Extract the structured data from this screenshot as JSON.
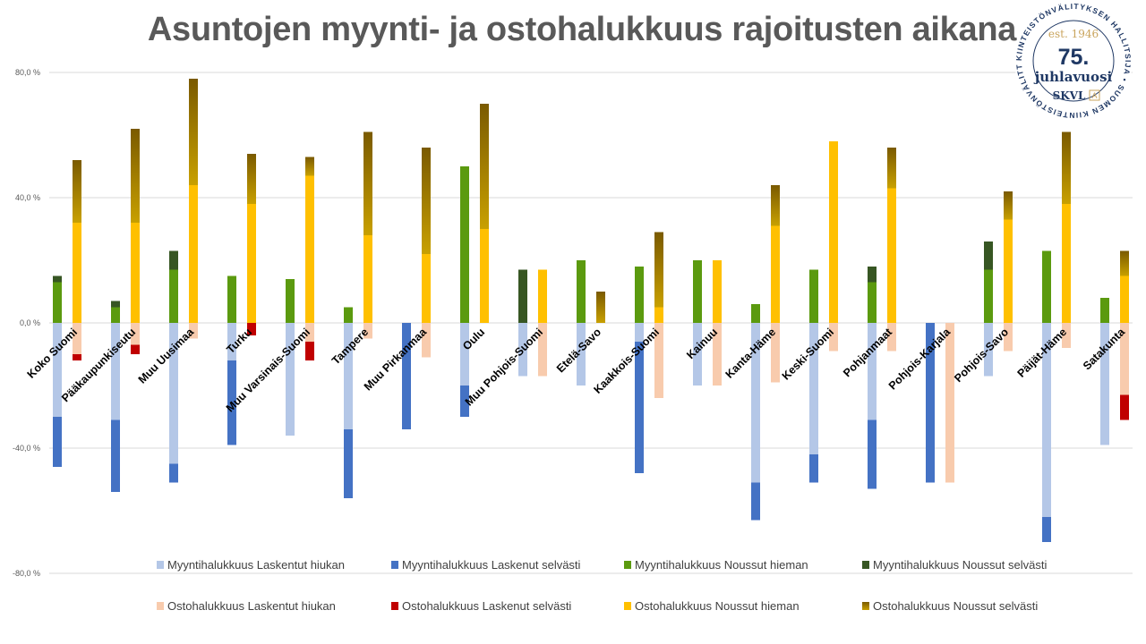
{
  "chart_data": {
    "type": "bar",
    "title": "Asuntojen myynti- ja ostohalukkuus rajoitusten aikana",
    "ylim": [
      -80,
      80
    ],
    "yticks": [
      "80,0 %",
      "40,0 %",
      "0,0 %",
      "-40,0 %",
      "-80,0 %"
    ],
    "grid": true,
    "legend_position": "bottom",
    "categories": [
      "Koko Suomi",
      "Pääkaupunkiseutu",
      "Muu Uusimaa",
      "Turku",
      "Muu Varsinais-Suomi",
      "Tampere",
      "Muu Pirkanmaa",
      "Oulu",
      "Muu Pohjois-Suomi",
      "Etelä-Savo",
      "Kaakkois-Suomi",
      "Kainuu",
      "Kanta-Häme",
      "Keski-Suomi",
      "Pohjanmaat",
      "Pohjois-Karjala",
      "Pohjois-Savo",
      "Päijät-Häme",
      "Satakunta"
    ],
    "series": [
      {
        "name": "Myyntihalukkuus Laskentut hiukan",
        "group": "myynti",
        "color": "#b4c7e7",
        "values": [
          -30,
          -31,
          -45,
          -12,
          -36,
          -34,
          0,
          -20,
          -17,
          -20,
          -6,
          -20,
          -51,
          -42,
          -31,
          0,
          -17,
          -62,
          -39
        ]
      },
      {
        "name": "Myyntihalukkuus Laskenut selvästi",
        "group": "myynti",
        "color": "#4472c4",
        "values": [
          -16,
          -23,
          -6,
          -27,
          0,
          -22,
          -34,
          -10,
          0,
          0,
          -42,
          0,
          -12,
          -9,
          -22,
          -51,
          0,
          -8,
          0
        ]
      },
      {
        "name": "Myyntihalukkuus Noussut hieman",
        "group": "myynti",
        "color": "#5b9a0f",
        "values": [
          13,
          5,
          17,
          15,
          14,
          5,
          0,
          50,
          0,
          20,
          18,
          20,
          6,
          17,
          13,
          0,
          17,
          23,
          8
        ]
      },
      {
        "name": "Myyntihalukkuus Noussut selvästi",
        "group": "myynti",
        "color": "#375623",
        "values": [
          2,
          2,
          6,
          0,
          0,
          0,
          0,
          0,
          17,
          0,
          0,
          0,
          0,
          0,
          5,
          0,
          9,
          0,
          0
        ]
      },
      {
        "name": "Ostohalukkuus Laskentut hiukan",
        "group": "osto",
        "color": "#f8cbad",
        "values": [
          -10,
          -7,
          -5,
          0,
          -6,
          -5,
          -11,
          0,
          -17,
          0,
          -24,
          -20,
          -19,
          -9,
          -9,
          -51,
          -9,
          -8,
          -23
        ]
      },
      {
        "name": "Ostohalukkuus Laskenut selvästi",
        "group": "osto",
        "color": "#c00000",
        "values": [
          -2,
          -3,
          0,
          -4,
          -6,
          0,
          0,
          0,
          0,
          0,
          0,
          0,
          0,
          0,
          0,
          0,
          0,
          0,
          -8
        ]
      },
      {
        "name": "Ostohalukkuus Noussut hieman",
        "group": "osto",
        "color": "#ffc000",
        "values": [
          32,
          32,
          44,
          38,
          47,
          28,
          22,
          30,
          17,
          0,
          5,
          20,
          31,
          58,
          43,
          0,
          33,
          38,
          15
        ]
      },
      {
        "name": "Ostohalukkuus Noussut selvästi",
        "group": "osto",
        "color": "#a07400",
        "values": [
          20,
          30,
          34,
          16,
          6,
          33,
          34,
          40,
          0,
          10,
          24,
          0,
          13,
          0,
          13,
          0,
          9,
          23,
          8
        ]
      }
    ]
  },
  "logo": {
    "ring_text": "KIINTEISTÖNVÄLITYKSEN HALLITSIJA • SUOMEN KIINTEISTÖNVÄLITTÄJÄT RY •",
    "est": "est. 1946",
    "number": "75.",
    "word": "juhlavuosi",
    "brand": "SKVL",
    "brand_mark": "A",
    "color": "#1f3864",
    "accent": "#c9a45c"
  }
}
